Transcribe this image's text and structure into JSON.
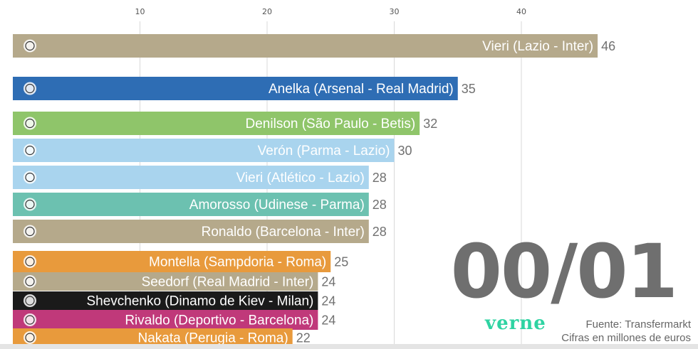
{
  "chart_data": {
    "type": "bar",
    "orientation": "horizontal",
    "ticks": [
      10,
      20,
      30,
      40
    ],
    "xlim": [
      0,
      52
    ],
    "grid": true,
    "categories": [
      "Vieri (Lazio - Inter)",
      "Anelka (Arsenal - Real Madrid)",
      "Denilson (São Paulo - Betis)",
      "Verón (Parma - Lazio)",
      "Vieri (Atlético - Lazio)",
      "Amorosso (Udinese - Parma)",
      "Ronaldo (Barcelona - Inter)",
      "Montella (Sampdoria - Roma)",
      "Seedorf (Real Madrid - Inter)",
      "Shevchenko (Dinamo de Kiev - Milan)",
      "Rivaldo (Deportivo - Barcelona)",
      "Nakata (Perugia - Roma)"
    ],
    "values": [
      46,
      35,
      32,
      30,
      28,
      28,
      28,
      25,
      24,
      24,
      24,
      22
    ],
    "colors": [
      "#b5a98b",
      "#2e6db4",
      "#8fc56a",
      "#a9d4ee",
      "#a9d4ee",
      "#6cc1b0",
      "#b5a98b",
      "#e89a3c",
      "#b5a98b",
      "#1a1a1a",
      "#c0397a",
      "#e89a3c"
    ],
    "badges": [
      "inter-crest-icon",
      "real-madrid-crest-icon",
      "betis-crest-icon",
      "lazio-crest-icon",
      "lazio-crest-icon",
      "parma-crest-icon",
      "inter-crest-icon",
      "roma-crest-icon",
      "inter-crest-icon",
      "milan-crest-icon",
      "barcelona-crest-icon",
      "roma-crest-icon"
    ]
  },
  "overlay": {
    "season": "00/01",
    "brand": "verne",
    "source": "Fuente: Transfermarkt",
    "units": "Cifras en millones de euros"
  }
}
